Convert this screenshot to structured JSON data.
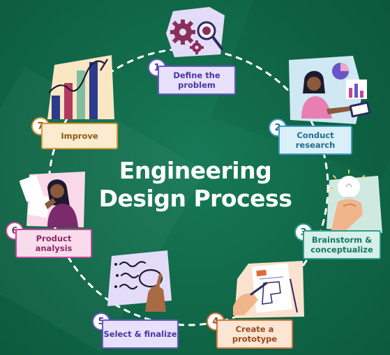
{
  "title": {
    "line1": "Engineering",
    "line2": "Design Process"
  },
  "steps": [
    {
      "number": "1",
      "label": "Define the problem",
      "illustration": "gears-magnifier",
      "accent": "#6a55c8",
      "fill": "#e7e1fb",
      "text_color": "#4a35a0"
    },
    {
      "number": "2",
      "label": "Conduct research",
      "illustration": "woman-with-tablet-charts",
      "accent": "#3b9bc4",
      "fill": "#dbeff8",
      "text_color": "#1f6f92"
    },
    {
      "number": "3",
      "label": "Brainstorm & conceptualize",
      "illustration": "hand-holding-lightbulb",
      "accent": "#2f9c8c",
      "fill": "#d6f0ea",
      "text_color": "#1a7566"
    },
    {
      "number": "4",
      "label": "Create a prototype",
      "illustration": "hand-drawing-blueprint",
      "accent": "#d4733f",
      "fill": "#fbe5d3",
      "text_color": "#9a4b1f"
    },
    {
      "number": "5",
      "label": "Select & finalize",
      "illustration": "hand-circling-notes",
      "accent": "#6a55c8",
      "fill": "#e7e1fb",
      "text_color": "#4a35a0"
    },
    {
      "number": "6",
      "label": "Product analysis",
      "illustration": "woman-reviewing-papers",
      "accent": "#c2479a",
      "fill": "#f8dcec",
      "text_color": "#8c2868"
    },
    {
      "number": "7",
      "label": "Improve",
      "illustration": "rising-bar-chart",
      "accent": "#d89a3a",
      "fill": "#fbebcf",
      "text_color": "#8a5b12"
    }
  ]
}
